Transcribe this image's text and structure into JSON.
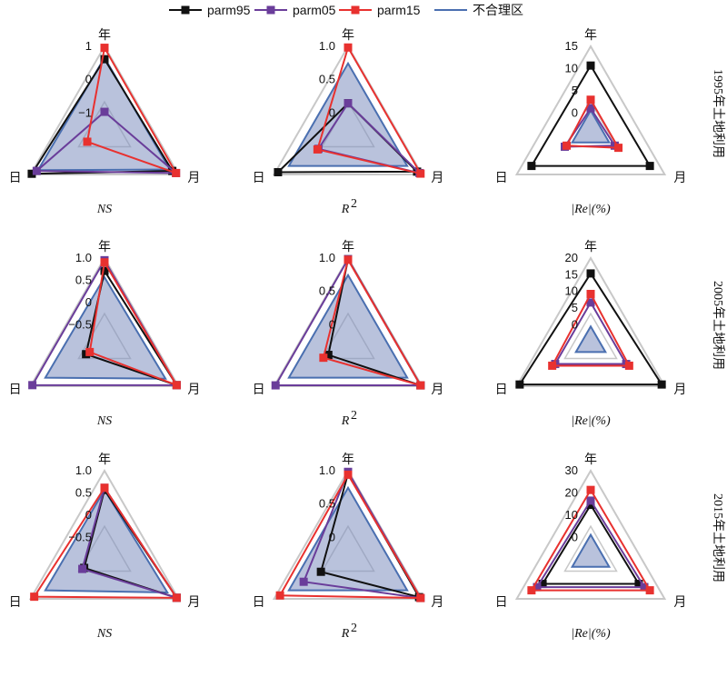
{
  "legend": [
    {
      "name": "parm95",
      "color": "#111111",
      "kind": "marker"
    },
    {
      "name": "parm05",
      "color": "#6a3d9a",
      "kind": "marker"
    },
    {
      "name": "parm15",
      "color": "#e8312f",
      "kind": "marker"
    },
    {
      "name": "不合理区",
      "color": "#4a6fb0",
      "kind": "line"
    }
  ],
  "axes_vertices": [
    "年",
    "月",
    "日"
  ],
  "row_labels": [
    "1995年土地利用",
    "2005年土地利用",
    "2015年土地利用"
  ],
  "metric_labels": {
    "NS": "NS",
    "R2_base": "R",
    "R2_sup": "2",
    "Re": "|Re|(%)"
  },
  "colors": {
    "parm95": "#111111",
    "parm05": "#6a3d9a",
    "parm15": "#e8312f",
    "zone_fill": "#7f8fbf",
    "zone_stroke": "#4a6fb0",
    "grid": "#c8c8c8"
  },
  "chart_data": [
    {
      "type": "radar",
      "row": "1995年土地利用",
      "metric": "NS",
      "axes": [
        "年",
        "月",
        "日"
      ],
      "ticks": [
        "1",
        "0",
        "−1"
      ],
      "range": [
        -2,
        1
      ],
      "zone": [
        0.6,
        0.65,
        0.7
      ],
      "series": [
        {
          "name": "parm95",
          "values": [
            0.55,
            0.75,
            0.95
          ]
        },
        {
          "name": "parm05",
          "values": [
            -1.3,
            0.9,
            0.75
          ]
        },
        {
          "name": "parm15",
          "values": [
            0.95,
            0.9,
            -1.3
          ]
        }
      ]
    },
    {
      "type": "radar",
      "row": "1995年土地利用",
      "metric": "R2",
      "axes": [
        "年",
        "月",
        "日"
      ],
      "ticks": [
        "1.0",
        "0.5",
        "0"
      ],
      "range": [
        -0.5,
        1
      ],
      "zone": [
        0.7,
        0.7,
        0.7
      ],
      "series": [
        {
          "name": "parm95",
          "values": [
            0.0,
            0.9,
            0.92
          ]
        },
        {
          "name": "parm05",
          "values": [
            0.0,
            0.95,
            0.1
          ]
        },
        {
          "name": "parm15",
          "values": [
            0.98,
            0.97,
            0.12
          ]
        }
      ]
    },
    {
      "type": "radar",
      "row": "1995年土地利用",
      "metric": "Re",
      "axes": [
        "年",
        "月",
        "日"
      ],
      "ticks": [
        "15",
        "10",
        "5",
        "0"
      ],
      "range": [
        -5,
        15
      ],
      "zone": [
        0,
        0,
        0
      ],
      "series": [
        {
          "name": "parm95",
          "values": [
            10.5,
            11,
            11
          ]
        },
        {
          "name": "parm05",
          "values": [
            0.5,
            1.5,
            2.0
          ]
        },
        {
          "name": "parm15",
          "values": [
            2.5,
            2.5,
            1.5
          ]
        }
      ]
    },
    {
      "type": "radar",
      "row": "2005年土地利用",
      "metric": "NS",
      "axes": [
        "年",
        "月",
        "日"
      ],
      "ticks": [
        "1.0",
        "0.5",
        "0",
        "−0.5"
      ],
      "range": [
        -1,
        1
      ],
      "zone": [
        0.55,
        0.65,
        0.6
      ],
      "series": [
        {
          "name": "parm95",
          "values": [
            0.7,
            0.95,
            -0.5
          ]
        },
        {
          "name": "parm05",
          "values": [
            0.95,
            0.95,
            0.95
          ]
        },
        {
          "name": "parm15",
          "values": [
            0.9,
            0.95,
            -0.6
          ]
        }
      ]
    },
    {
      "type": "radar",
      "row": "2005年土地利用",
      "metric": "R2",
      "axes": [
        "年",
        "月",
        "日"
      ],
      "ticks": [
        "1.0",
        "0.5",
        "0"
      ],
      "range": [
        -0.5,
        1
      ],
      "zone": [
        0.7,
        0.7,
        0.7
      ],
      "series": [
        {
          "name": "parm95",
          "values": [
            0.98,
            0.97,
            -0.1
          ]
        },
        {
          "name": "parm05",
          "values": [
            0.98,
            0.97,
            0.97
          ]
        },
        {
          "name": "parm15",
          "values": [
            0.97,
            0.97,
            0.0
          ]
        }
      ]
    },
    {
      "type": "radar",
      "row": "2005年土地利用",
      "metric": "Re",
      "axes": [
        "年",
        "月",
        "日"
      ],
      "ticks": [
        "20",
        "15",
        "10",
        "5",
        "0"
      ],
      "range": [
        -5,
        20
      ],
      "zone": [
        0,
        0,
        0
      ],
      "series": [
        {
          "name": "parm95",
          "values": [
            15.5,
            19,
            19
          ]
        },
        {
          "name": "parm05",
          "values": [
            7,
            7,
            7
          ]
        },
        {
          "name": "parm15",
          "values": [
            9.5,
            8,
            8
          ]
        }
      ]
    },
    {
      "type": "radar",
      "row": "2015年土地利用",
      "metric": "NS",
      "axes": [
        "年",
        "月",
        "日"
      ],
      "ticks": [
        "1.0",
        "0.5",
        "0",
        "−0.5"
      ],
      "range": [
        -1,
        1
      ],
      "zone": [
        0.55,
        0.7,
        0.6
      ],
      "series": [
        {
          "name": "parm95",
          "values": [
            0.55,
            0.95,
            -0.45
          ]
        },
        {
          "name": "parm05",
          "values": [
            0.6,
            0.95,
            -0.4
          ]
        },
        {
          "name": "parm15",
          "values": [
            0.6,
            0.95,
            0.9
          ]
        }
      ]
    },
    {
      "type": "radar",
      "row": "2015年土地利用",
      "metric": "R2",
      "axes": [
        "年",
        "月",
        "日"
      ],
      "ticks": [
        "1.0",
        "0.5",
        "0"
      ],
      "range": [
        -0.5,
        1
      ],
      "zone": [
        0.7,
        0.7,
        0.7
      ],
      "series": [
        {
          "name": "parm95",
          "values": [
            0.95,
            0.94,
            0.05
          ]
        },
        {
          "name": "parm05",
          "values": [
            0.98,
            0.97,
            0.4
          ]
        },
        {
          "name": "parm15",
          "values": [
            0.93,
            0.97,
            0.88
          ]
        }
      ]
    },
    {
      "type": "radar",
      "row": "2015年土地利用",
      "metric": "Re",
      "axes": [
        "年",
        "月",
        "日"
      ],
      "ticks": [
        "30",
        "20",
        "10",
        "0"
      ],
      "range": [
        -10,
        30
      ],
      "zone": [
        0,
        0,
        0
      ],
      "series": [
        {
          "name": "parm95",
          "values": [
            14,
            16,
            16
          ]
        },
        {
          "name": "parm05",
          "values": [
            16,
            19,
            19
          ]
        },
        {
          "name": "parm15",
          "values": [
            21,
            22,
            22
          ]
        }
      ]
    }
  ]
}
